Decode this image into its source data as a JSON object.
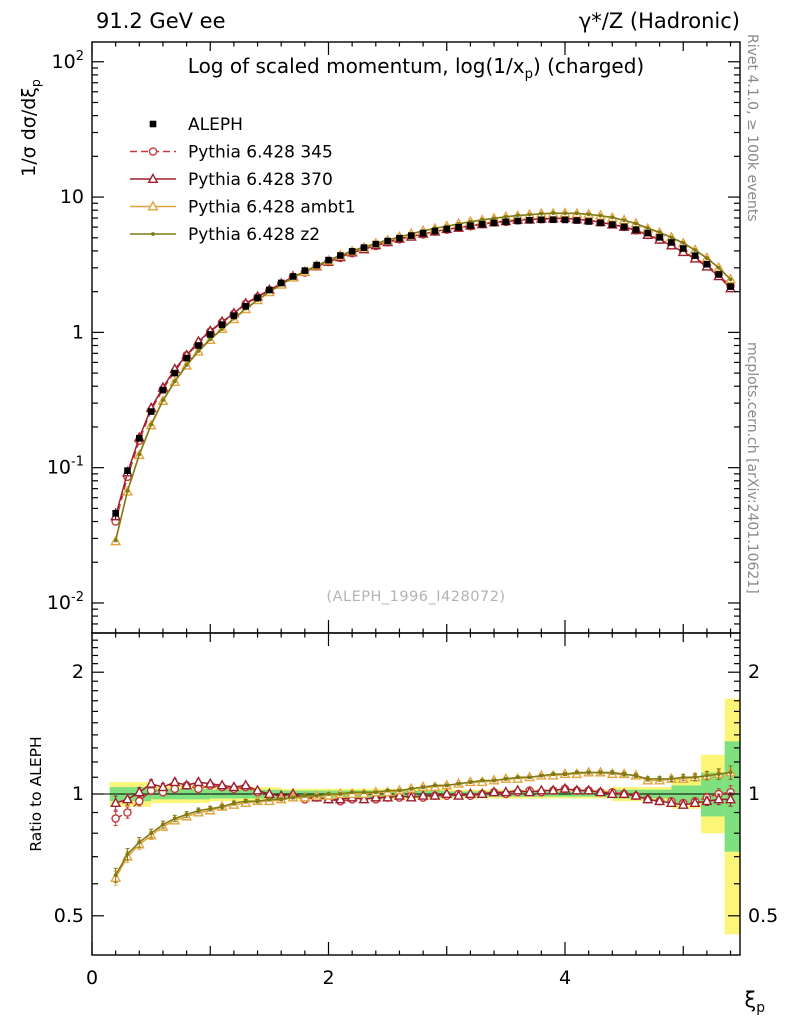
{
  "labels": {
    "header_left": "91.2 GeV ee",
    "header_right": "γ*/Z (Hadronic)",
    "title_pre": "Log of scaled momentum, log(1/x",
    "title_sub": "p",
    "title_post": ") (charged)",
    "ylabel_pre": "1/σ  dσ/dξ",
    "ylabel_sub": "p",
    "ratio_ylabel": "Ratio to ALEPH",
    "xlabel_main": "ξ",
    "xlabel_sub": "p",
    "watermark": "(ALEPH_1996_I428072)",
    "side_top": "Rivet 4.1.0, ≥ 100k events",
    "side_bottom": "mcplots.cern.ch [arXiv:2401.10621]"
  },
  "chart_data": {
    "type": "line",
    "title": "Log of scaled momentum, log(1/x_p) (charged)",
    "xlabel": "xi_p",
    "ylabel": "1/sigma dsigma/dxi_p",
    "ratio_label": "Ratio to ALEPH",
    "legend_position": "top-left",
    "grid": false,
    "xlim": [
      0,
      5.48
    ],
    "top_ylim": [
      0.006,
      140
    ],
    "ratio_ylim": [
      0.4,
      2.5
    ],
    "top_yticks": [
      {
        "v": 100,
        "base": "10",
        "exp": "2"
      },
      {
        "v": 10,
        "base": "10",
        "exp": ""
      },
      {
        "v": 1,
        "base": "1",
        "exp": ""
      },
      {
        "v": 0.1,
        "base": "10",
        "exp": "-1"
      },
      {
        "v": 0.01,
        "base": "10",
        "exp": "-2"
      }
    ],
    "ratio_yticks": [
      {
        "v": 2,
        "label": "2"
      },
      {
        "v": 1,
        "label": "1"
      },
      {
        "v": 0.5,
        "label": "0.5"
      }
    ],
    "xticks": [
      {
        "v": 0,
        "label": "0"
      },
      {
        "v": 2,
        "label": "2"
      },
      {
        "v": 4,
        "label": "4"
      }
    ],
    "data_label": "ALEPH",
    "data_color": "#000000",
    "data_marker": "square",
    "x": [
      0.2,
      0.3,
      0.4,
      0.5,
      0.6,
      0.7,
      0.8,
      0.9,
      1.0,
      1.1,
      1.2,
      1.3,
      1.4,
      1.5,
      1.6,
      1.7,
      1.8,
      1.9,
      2.0,
      2.1,
      2.2,
      2.3,
      2.4,
      2.5,
      2.6,
      2.7,
      2.8,
      2.9,
      3.0,
      3.1,
      3.2,
      3.3,
      3.4,
      3.5,
      3.6,
      3.7,
      3.8,
      3.9,
      4.0,
      4.1,
      4.2,
      4.3,
      4.4,
      4.5,
      4.6,
      4.7,
      4.8,
      4.9,
      5.0,
      5.1,
      5.2,
      5.3,
      5.4
    ],
    "aleph": [
      0.046,
      0.095,
      0.165,
      0.26,
      0.375,
      0.5,
      0.645,
      0.8,
      0.965,
      1.14,
      1.33,
      1.56,
      1.8,
      2.06,
      2.32,
      2.59,
      2.86,
      3.14,
      3.42,
      3.7,
      3.97,
      4.23,
      4.49,
      4.73,
      4.97,
      5.19,
      5.41,
      5.61,
      5.8,
      5.98,
      6.15,
      6.3,
      6.44,
      6.56,
      6.66,
      6.74,
      6.79,
      6.8,
      6.78,
      6.71,
      6.6,
      6.45,
      6.26,
      6.02,
      5.74,
      5.41,
      5.04,
      4.62,
      4.17,
      3.69,
      3.19,
      2.68,
      2.18
    ],
    "data_err_frac": [
      0.09,
      0.07,
      0.055,
      0.045,
      0.04,
      0.035,
      0.03,
      0.028,
      0.026,
      0.024,
      0.022,
      0.021,
      0.02,
      0.019,
      0.018,
      0.018,
      0.017,
      0.017,
      0.016,
      0.016,
      0.016,
      0.015,
      0.015,
      0.015,
      0.015,
      0.015,
      0.015,
      0.015,
      0.015,
      0.015,
      0.015,
      0.015,
      0.015,
      0.015,
      0.015,
      0.015,
      0.015,
      0.015,
      0.016,
      0.016,
      0.016,
      0.017,
      0.017,
      0.018,
      0.018,
      0.019,
      0.02,
      0.022,
      0.025,
      0.028,
      0.032,
      0.04,
      0.05
    ],
    "mc_err_frac": [
      0.04,
      0.032,
      0.027,
      0.023,
      0.02,
      0.018,
      0.016,
      0.014,
      0.013,
      0.012,
      0.011,
      0.01,
      0.01,
      0.009,
      0.009,
      0.008,
      0.008,
      0.008,
      0.007,
      0.007,
      0.007,
      0.007,
      0.007,
      0.007,
      0.007,
      0.007,
      0.007,
      0.007,
      0.007,
      0.007,
      0.007,
      0.007,
      0.007,
      0.007,
      0.007,
      0.007,
      0.007,
      0.008,
      0.008,
      0.008,
      0.009,
      0.009,
      0.01,
      0.01,
      0.011,
      0.012,
      0.013,
      0.015,
      0.017,
      0.02,
      0.024,
      0.03,
      0.038
    ],
    "series": [
      {
        "id": "pythia-345",
        "label": "Pythia 6.428 345",
        "color": "#c43b3b",
        "dash": "7,4",
        "marker": "circle",
        "ratio": [
          0.87,
          0.9,
          0.96,
          1.02,
          1.01,
          1.03,
          1.05,
          1.03,
          1.05,
          1.04,
          1.03,
          1.04,
          1.01,
          0.99,
          0.98,
          0.99,
          0.97,
          0.98,
          0.97,
          0.96,
          0.97,
          0.98,
          0.97,
          0.98,
          0.98,
          0.99,
          0.98,
          0.99,
          0.99,
          1.0,
          0.99,
          1.0,
          1.01,
          1.0,
          1.01,
          1.02,
          1.01,
          1.02,
          1.03,
          1.02,
          1.02,
          1.01,
          1.01,
          1.0,
          0.99,
          0.97,
          0.96,
          0.96,
          0.95,
          0.96,
          0.98,
          1.0,
          1.01
        ]
      },
      {
        "id": "pythia-370",
        "label": "Pythia 6.428 370",
        "color": "#9e1f2f",
        "dash": "",
        "marker": "triangle",
        "ratio": [
          0.95,
          0.97,
          1.01,
          1.06,
          1.04,
          1.07,
          1.05,
          1.07,
          1.06,
          1.05,
          1.04,
          1.05,
          1.02,
          1.0,
          0.99,
          1.0,
          0.98,
          0.98,
          0.97,
          0.97,
          0.98,
          0.97,
          0.98,
          0.98,
          0.99,
          0.98,
          0.99,
          0.99,
          1.0,
          0.99,
          1.0,
          1.0,
          1.01,
          1.01,
          1.02,
          1.01,
          1.02,
          1.02,
          1.03,
          1.02,
          1.02,
          1.01,
          1.0,
          1.0,
          0.99,
          0.97,
          0.96,
          0.95,
          0.94,
          0.95,
          0.96,
          0.97,
          0.97
        ]
      },
      {
        "id": "pythia-ambt1",
        "label": "Pythia 6.428 ambt1",
        "color": "#e3a33d",
        "dash": "",
        "marker": "triangle",
        "ratio": [
          0.62,
          0.7,
          0.75,
          0.79,
          0.83,
          0.86,
          0.88,
          0.9,
          0.91,
          0.93,
          0.94,
          0.95,
          0.96,
          0.96,
          0.97,
          0.98,
          0.98,
          0.99,
          0.99,
          1.0,
          1.0,
          1.0,
          1.01,
          1.01,
          1.02,
          1.03,
          1.04,
          1.04,
          1.05,
          1.06,
          1.07,
          1.07,
          1.08,
          1.09,
          1.09,
          1.1,
          1.11,
          1.11,
          1.12,
          1.12,
          1.13,
          1.13,
          1.12,
          1.12,
          1.11,
          1.08,
          1.08,
          1.09,
          1.09,
          1.1,
          1.11,
          1.12,
          1.13
        ]
      },
      {
        "id": "pythia-z2",
        "label": "Pythia 6.428 z2",
        "color": "#7e7a15",
        "dash": "",
        "marker": "dot",
        "ratio": [
          0.63,
          0.71,
          0.76,
          0.8,
          0.84,
          0.87,
          0.89,
          0.91,
          0.92,
          0.93,
          0.95,
          0.96,
          0.96,
          0.97,
          0.97,
          0.98,
          0.99,
          0.99,
          1.0,
          1.0,
          1.01,
          1.01,
          1.01,
          1.02,
          1.02,
          1.03,
          1.04,
          1.05,
          1.05,
          1.06,
          1.07,
          1.08,
          1.08,
          1.09,
          1.1,
          1.1,
          1.11,
          1.12,
          1.12,
          1.13,
          1.13,
          1.13,
          1.13,
          1.12,
          1.11,
          1.09,
          1.09,
          1.09,
          1.1,
          1.1,
          1.11,
          1.12,
          1.13
        ]
      }
    ],
    "bands": {
      "yellow_color": "#fcf578",
      "green_color": "#7fe07f",
      "yellow": [
        [
          0.15,
          0.5,
          0.93,
          1.07
        ],
        [
          0.5,
          1.0,
          0.95,
          1.05
        ],
        [
          1.0,
          1.6,
          0.96,
          1.04
        ],
        [
          1.6,
          3.0,
          0.97,
          1.03
        ],
        [
          3.0,
          4.4,
          0.975,
          1.025
        ],
        [
          4.4,
          4.9,
          0.96,
          1.04
        ],
        [
          4.9,
          5.15,
          0.92,
          1.09
        ],
        [
          5.15,
          5.35,
          0.8,
          1.25
        ],
        [
          5.35,
          5.48,
          0.45,
          1.72
        ]
      ],
      "green": [
        [
          0.15,
          0.5,
          0.96,
          1.04
        ],
        [
          0.5,
          1.0,
          0.97,
          1.03
        ],
        [
          1.0,
          1.6,
          0.975,
          1.025
        ],
        [
          1.6,
          3.0,
          0.98,
          1.02
        ],
        [
          3.0,
          4.4,
          0.985,
          1.015
        ],
        [
          4.4,
          4.9,
          0.975,
          1.025
        ],
        [
          4.9,
          5.15,
          0.95,
          1.05
        ],
        [
          5.15,
          5.35,
          0.88,
          1.13
        ],
        [
          5.35,
          5.48,
          0.72,
          1.35
        ]
      ]
    }
  }
}
